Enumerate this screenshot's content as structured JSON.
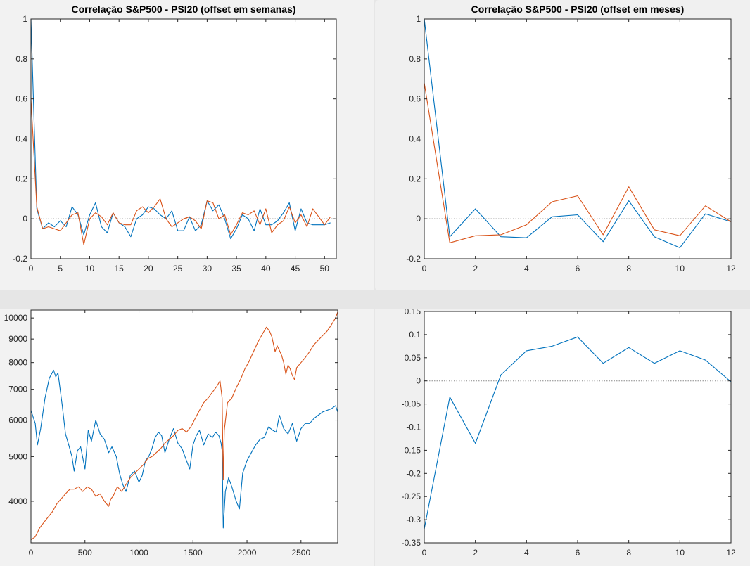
{
  "colors": {
    "series1": "#0072BD",
    "series2": "#D95319",
    "axis": "#262626",
    "zero_line": "#8c8c8c"
  },
  "chart_data": [
    {
      "type": "line",
      "title": "Correlação S&P500 - PSI20 (offset em semanas)",
      "xlim": [
        0,
        52
      ],
      "ylim": [
        -0.2,
        1
      ],
      "xticks": [
        0,
        5,
        10,
        15,
        20,
        25,
        30,
        35,
        40,
        45,
        50
      ],
      "yticks": [
        -0.2,
        0,
        0.2,
        0.4,
        0.6,
        0.8,
        1
      ],
      "zero_line": true,
      "series": [
        {
          "values": [
            1,
            0.05,
            -0.05,
            -0.02,
            -0.04,
            -0.01,
            -0.04,
            0.06,
            0.02,
            -0.08,
            0.02,
            0.08,
            -0.04,
            -0.07,
            0.03,
            -0.02,
            -0.04,
            -0.09,
            0.0,
            0.02,
            0.06,
            0.05,
            0.02,
            0.0,
            0.04,
            -0.06,
            -0.06,
            0.01,
            -0.06,
            -0.03,
            0.09,
            0.04,
            0.07,
            0.0,
            -0.1,
            -0.05,
            0.02,
            0.0,
            -0.06,
            0.05,
            -0.03,
            -0.03,
            -0.01,
            0.03,
            0.08,
            -0.06,
            0.05,
            -0.02,
            -0.03,
            -0.03,
            -0.03,
            -0.02
          ]
        },
        {
          "values": [
            0.6,
            0.06,
            -0.05,
            -0.04,
            -0.05,
            -0.06,
            -0.02,
            0.02,
            0.03,
            -0.13,
            0.0,
            0.03,
            0.01,
            -0.03,
            0.03,
            -0.02,
            -0.03,
            -0.03,
            0.04,
            0.06,
            0.03,
            0.06,
            0.1,
            0.0,
            -0.04,
            -0.02,
            0.0,
            0.01,
            -0.01,
            -0.05,
            0.09,
            0.08,
            0.0,
            0.02,
            -0.08,
            -0.03,
            0.03,
            0.02,
            0.04,
            -0.03,
            0.05,
            -0.07,
            -0.03,
            -0.01,
            0.06,
            -0.02,
            0.02,
            -0.04,
            0.05,
            0.01,
            -0.03,
            0.01
          ]
        }
      ]
    },
    {
      "type": "line",
      "title": "Correlação S&P500 - PSI20 (offset em meses)",
      "xlim": [
        0,
        12
      ],
      "ylim": [
        -0.2,
        1
      ],
      "xticks": [
        0,
        2,
        4,
        6,
        8,
        10,
        12
      ],
      "yticks": [
        -0.2,
        0,
        0.2,
        0.4,
        0.6,
        0.8,
        1
      ],
      "zero_line": true,
      "series": [
        {
          "values": [
            1,
            -0.09,
            0.05,
            -0.09,
            -0.095,
            0.01,
            0.02,
            -0.115,
            0.09,
            -0.09,
            -0.145,
            0.025,
            -0.015
          ]
        },
        {
          "values": [
            0.68,
            -0.12,
            -0.085,
            -0.08,
            -0.03,
            0.085,
            0.115,
            -0.08,
            0.16,
            -0.055,
            -0.085,
            0.065,
            -0.015
          ]
        }
      ]
    },
    {
      "type": "line",
      "xlim": [
        0,
        2840
      ],
      "ylim": [
        3250,
        10400
      ],
      "yscale": "log",
      "xticks": [
        0,
        500,
        1000,
        1500,
        2000,
        2500
      ],
      "yticks": [
        4000,
        5000,
        6000,
        7000,
        8000,
        9000,
        10000
      ],
      "series": [
        {
          "x": [
            0,
            40,
            60,
            90,
            130,
            170,
            210,
            230,
            250,
            270,
            290,
            320,
            350,
            380,
            400,
            430,
            460,
            500,
            530,
            560,
            600,
            640,
            680,
            720,
            750,
            790,
            820,
            850,
            880,
            920,
            960,
            1000,
            1030,
            1060,
            1090,
            1120,
            1150,
            1180,
            1210,
            1240,
            1280,
            1320,
            1360,
            1400,
            1440,
            1470,
            1500,
            1530,
            1560,
            1600,
            1640,
            1680,
            1710,
            1740,
            1760,
            1770,
            1780,
            1800,
            1830,
            1860,
            1900,
            1930,
            1960,
            2000,
            2040,
            2080,
            2120,
            2160,
            2200,
            2240,
            2270,
            2300,
            2340,
            2380,
            2420,
            2460,
            2500,
            2540,
            2580,
            2620,
            2660,
            2700,
            2740,
            2780,
            2820,
            2840
          ],
          "values": [
            6300,
            5900,
            5300,
            5750,
            6700,
            7400,
            7700,
            7450,
            7600,
            7000,
            6450,
            5600,
            5300,
            5000,
            4650,
            5150,
            5250,
            4700,
            5700,
            5400,
            6000,
            5600,
            5450,
            5100,
            5250,
            5000,
            4600,
            4350,
            4200,
            4550,
            4650,
            4400,
            4550,
            4900,
            5000,
            5200,
            5500,
            5650,
            5550,
            5100,
            5450,
            5750,
            5350,
            5200,
            4900,
            4700,
            5300,
            5550,
            5700,
            5300,
            5600,
            5500,
            5650,
            5550,
            5350,
            5150,
            3500,
            4200,
            4500,
            4300,
            4000,
            3850,
            4600,
            4900,
            5100,
            5300,
            5450,
            5500,
            5800,
            5700,
            5650,
            6150,
            5750,
            5600,
            5900,
            5400,
            5750,
            5900,
            5900,
            6050,
            6150,
            6250,
            6300,
            6350,
            6450,
            6250
          ]
        },
        {
          "x": [
            0,
            40,
            80,
            120,
            160,
            200,
            240,
            280,
            320,
            360,
            400,
            440,
            480,
            520,
            560,
            600,
            640,
            680,
            720,
            740,
            760,
            800,
            840,
            880,
            920,
            960,
            1000,
            1040,
            1080,
            1120,
            1160,
            1200,
            1240,
            1280,
            1320,
            1360,
            1400,
            1440,
            1480,
            1520,
            1560,
            1600,
            1640,
            1680,
            1720,
            1750,
            1770,
            1780,
            1790,
            1820,
            1860,
            1900,
            1940,
            1980,
            2020,
            2060,
            2100,
            2140,
            2180,
            2210,
            2230,
            2260,
            2280,
            2300,
            2320,
            2340,
            2360,
            2380,
            2400,
            2420,
            2440,
            2460,
            2500,
            2540,
            2580,
            2620,
            2660,
            2700,
            2740,
            2780,
            2820,
            2840
          ],
          "values": [
            3300,
            3350,
            3500,
            3600,
            3700,
            3800,
            3950,
            4050,
            4150,
            4250,
            4250,
            4300,
            4200,
            4300,
            4250,
            4100,
            4150,
            4000,
            3900,
            4050,
            4100,
            4300,
            4200,
            4350,
            4500,
            4600,
            4700,
            4800,
            4950,
            5000,
            5100,
            5200,
            5350,
            5450,
            5550,
            5700,
            5750,
            5650,
            5800,
            6050,
            6300,
            6550,
            6700,
            6900,
            7100,
            7300,
            6700,
            4450,
            5700,
            6550,
            6700,
            7050,
            7350,
            7750,
            8050,
            8450,
            8850,
            9200,
            9550,
            9350,
            9100,
            8450,
            8700,
            8500,
            8300,
            8000,
            7550,
            7900,
            7750,
            7500,
            7350,
            7800,
            8000,
            8200,
            8450,
            8750,
            8950,
            9150,
            9350,
            9650,
            10000,
            10300
          ]
        }
      ]
    },
    {
      "type": "line",
      "xlim": [
        0,
        12
      ],
      "ylim": [
        -0.35,
        0.15
      ],
      "xticks": [
        0,
        2,
        4,
        6,
        8,
        10,
        12
      ],
      "yticks": [
        -0.35,
        -0.3,
        -0.25,
        -0.2,
        -0.15,
        -0.1,
        -0.05,
        0,
        0.05,
        0.1,
        0.15
      ],
      "zero_line": true,
      "series": [
        {
          "values": [
            -0.32,
            -0.035,
            -0.135,
            0.013,
            0.065,
            0.075,
            0.095,
            0.038,
            0.072,
            0.038,
            0.065,
            0.045,
            -0.002
          ]
        }
      ]
    }
  ]
}
